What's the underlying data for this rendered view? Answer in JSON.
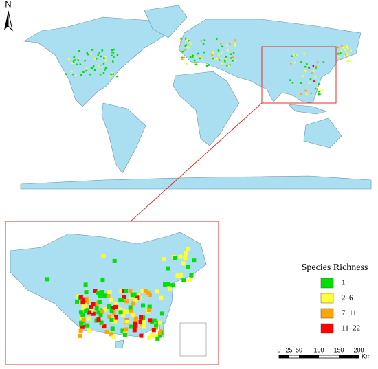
{
  "north_arrow": "N",
  "legend": {
    "title": "Species Richness",
    "items": [
      {
        "label": "1",
        "color": "#00e000"
      },
      {
        "label": "2–6",
        "color": "#ffff33"
      },
      {
        "label": "7–11",
        "color": "#ffa500"
      },
      {
        "label": "11–22",
        "color": "#ff0000"
      }
    ]
  },
  "scale_bar": {
    "ticks": [
      0,
      25,
      50,
      100,
      150,
      200
    ],
    "unit": "Km"
  }
}
